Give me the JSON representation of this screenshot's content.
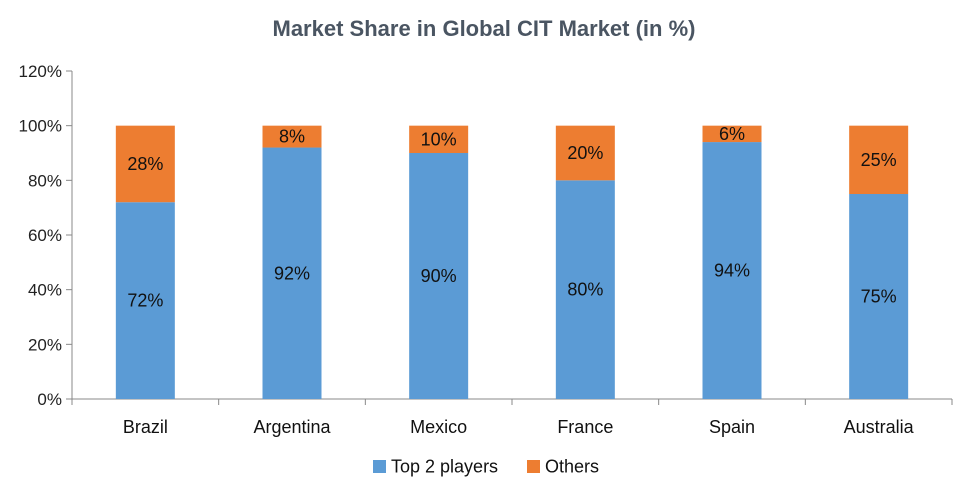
{
  "chart_data": {
    "type": "bar",
    "stacked": true,
    "title": "Market Share in Global CIT Market (in %)",
    "xlabel": "",
    "ylabel": "",
    "ylim": [
      0,
      120
    ],
    "yticks": [
      0,
      20,
      40,
      60,
      80,
      100,
      120
    ],
    "ytick_labels": [
      "0%",
      "20%",
      "40%",
      "60%",
      "80%",
      "100%",
      "120%"
    ],
    "categories": [
      "Brazil",
      "Argentina",
      "Mexico",
      "France",
      "Spain",
      "Australia"
    ],
    "series": [
      {
        "name": "Top 2 players",
        "color": "#5b9bd5",
        "values": [
          72,
          92,
          90,
          80,
          94,
          75
        ],
        "labels": [
          "72%",
          "92%",
          "90%",
          "80%",
          "94%",
          "75%"
        ]
      },
      {
        "name": "Others",
        "color": "#ed7d31",
        "values": [
          28,
          8,
          10,
          20,
          6,
          25
        ],
        "labels": [
          "28%",
          "8%",
          "10%",
          "20%",
          "6%",
          "25%"
        ]
      }
    ],
    "grid": false,
    "legend_position": "bottom"
  }
}
